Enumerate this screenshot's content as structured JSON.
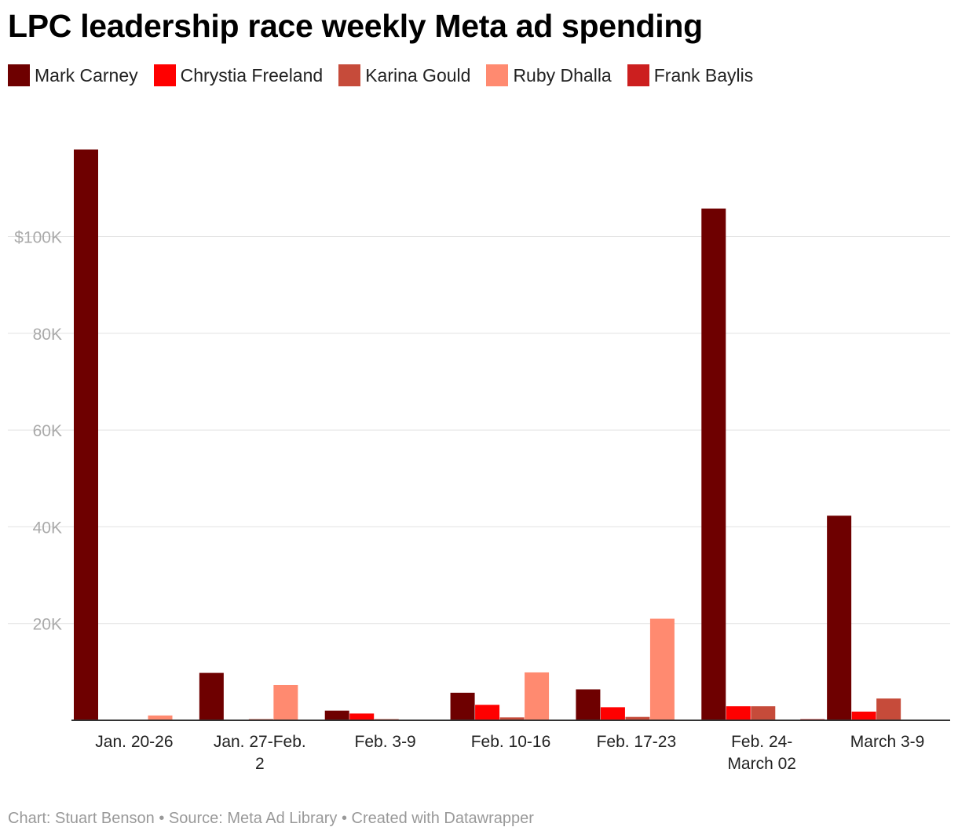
{
  "title": "LPC leadership race weekly Meta ad spending",
  "footer": "Chart: Stuart Benson • Source: Meta Ad Library • Created with Datawrapper",
  "chart_data": {
    "type": "bar",
    "title": "LPC leadership race weekly Meta ad spending",
    "xlabel": "",
    "ylabel": "",
    "ylim": [
      0,
      118000
    ],
    "yticks": [
      20000,
      40000,
      60000,
      80000,
      100000
    ],
    "ytick_labels": [
      "20K",
      "40K",
      "60K",
      "80K",
      "$100K"
    ],
    "grid": true,
    "legend_position": "top-left",
    "categories": [
      [
        "Jan. 20-26"
      ],
      [
        "Jan. 27-Feb.",
        "2"
      ],
      [
        "Feb. 3-9"
      ],
      [
        "Feb. 10-16"
      ],
      [
        "Feb. 17-23"
      ],
      [
        "Feb. 24-",
        "March 02"
      ],
      [
        "March 3-9"
      ]
    ],
    "series": [
      {
        "name": "Mark Carney",
        "color": "#6e0000",
        "values": [
          118000,
          9800,
          2000,
          5700,
          6400,
          105800,
          42300
        ]
      },
      {
        "name": "Chrystia Freeland",
        "color": "#ff0000",
        "values": [
          0,
          0,
          1400,
          3200,
          2700,
          2900,
          1800
        ]
      },
      {
        "name": "Karina Gould",
        "color": "#c64b3a",
        "values": [
          0,
          250,
          250,
          600,
          700,
          2900,
          4500
        ]
      },
      {
        "name": "Ruby Dhalla",
        "color": "#ff8a70",
        "values": [
          1000,
          7300,
          0,
          9900,
          21000,
          0,
          0
        ]
      },
      {
        "name": "Frank Baylis",
        "color": "#cc1f1f",
        "values": [
          0,
          0,
          0,
          0,
          0,
          250,
          0
        ]
      }
    ]
  }
}
